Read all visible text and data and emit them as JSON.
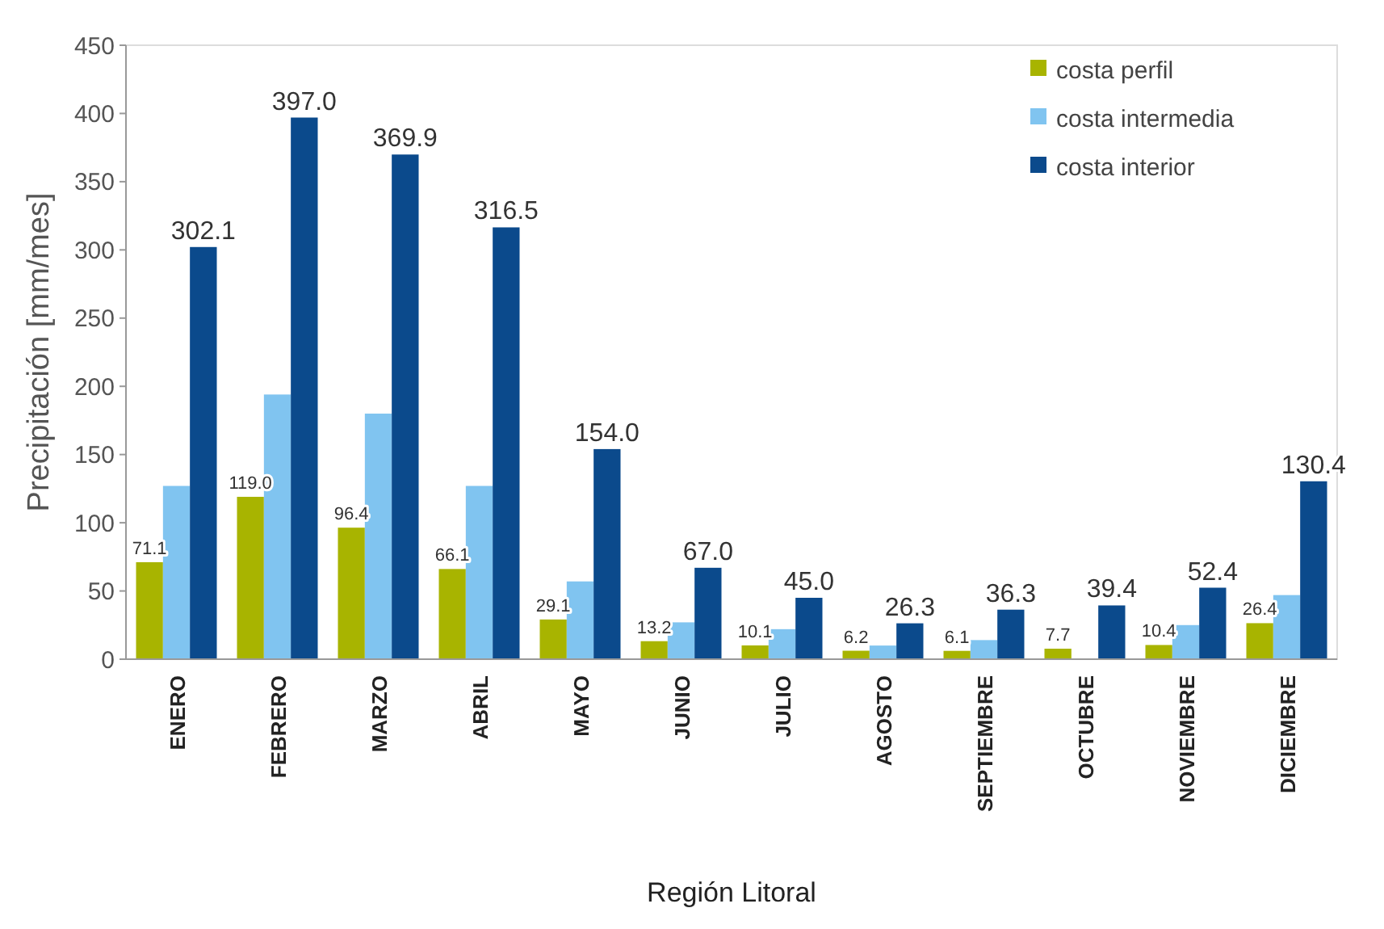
{
  "chart_data": {
    "type": "bar",
    "xlabel": "Región Litoral",
    "ylabel": "Precipitación [mm/mes]",
    "categories": [
      "ENERO",
      "FEBRERO",
      "MARZO",
      "ABRIL",
      "MAYO",
      "JUNIO",
      "JULIO",
      "AGOSTO",
      "SEPTIEMBRE",
      "OCTUBRE",
      "NOVIEMBRE",
      "DICIEMBRE"
    ],
    "series": [
      {
        "name": "costa perfil",
        "color": "#a8b400",
        "values": [
          71.1,
          119.0,
          96.4,
          66.1,
          29.1,
          13.2,
          10.1,
          6.2,
          6.1,
          7.7,
          10.4,
          26.4
        ],
        "value_labels": [
          "71.1",
          "119.0",
          "96.4",
          "66.1",
          "29.1",
          "13.2",
          "10.1",
          "6.2",
          "6.1",
          "7.7",
          "10.4",
          "26.4"
        ]
      },
      {
        "name": "costa intermedia",
        "color": "#80c4f0",
        "values": [
          127,
          194,
          180,
          127,
          57,
          27,
          22,
          10,
          14,
          null,
          25,
          47
        ]
      },
      {
        "name": "costa interior",
        "color": "#0b4a8c",
        "values": [
          302.1,
          397.0,
          369.9,
          316.5,
          154.0,
          67.0,
          45.0,
          26.3,
          36.3,
          39.4,
          52.4,
          130.4
        ],
        "value_labels": [
          "302.1",
          "397.0",
          "369.9",
          "316.5",
          "154.0",
          "67.0",
          "45.0",
          "26.3",
          "36.3",
          "39.4",
          "52.4",
          "130.4"
        ]
      }
    ],
    "ylim": [
      0,
      450
    ],
    "yticks": [
      0,
      50,
      100,
      150,
      200,
      250,
      300,
      350,
      400,
      450
    ],
    "legend": "top right"
  }
}
